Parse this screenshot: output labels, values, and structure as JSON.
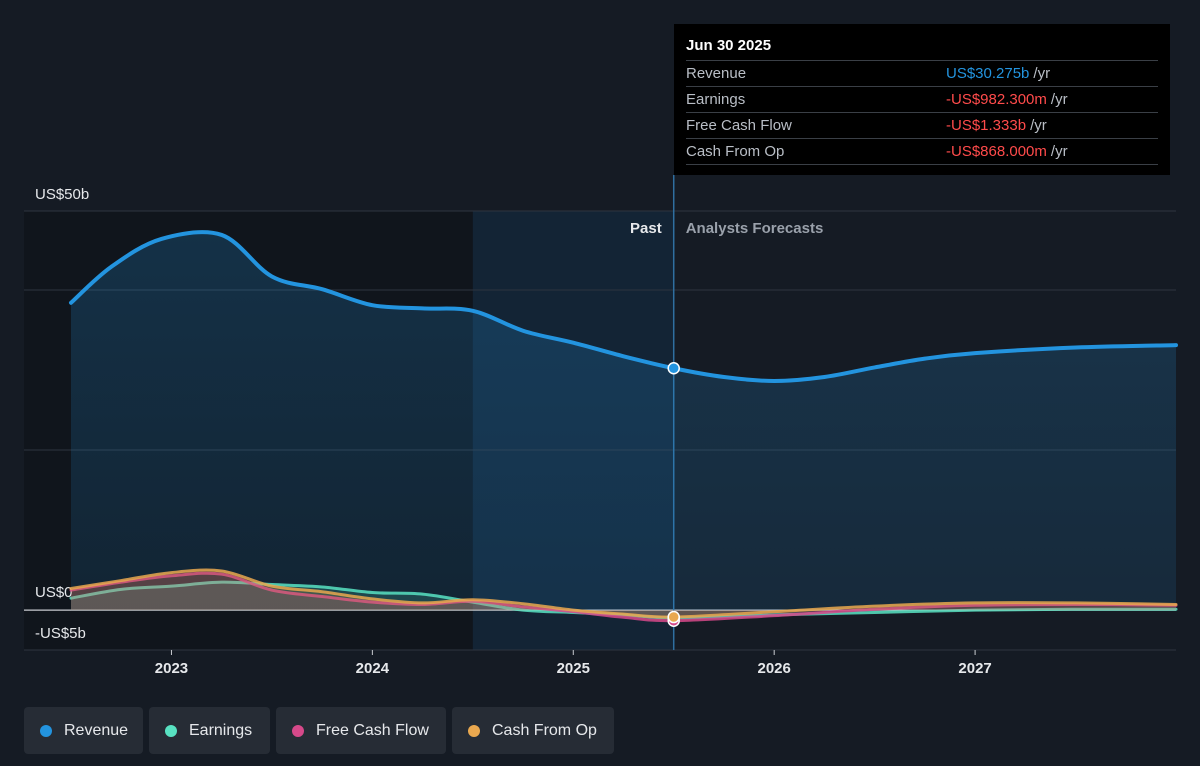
{
  "chart_data": {
    "type": "area",
    "ylim": [
      -5,
      50
    ],
    "y_ticks": [
      {
        "value": 50,
        "label": "US$50b"
      },
      {
        "value": 0,
        "label": "US$0"
      },
      {
        "value": -5,
        "label": "-US$5b"
      }
    ],
    "x_ticks": [
      "2023",
      "2024",
      "2025",
      "2026",
      "2027"
    ],
    "x_range": [
      2022.5,
      2028.0
    ],
    "past_label": "Past",
    "forecast_label": "Analysts Forecasts",
    "divider_x": 2025.5,
    "highlight_start_x": 2024.5,
    "series": [
      {
        "name": "Revenue",
        "color": "#2394df",
        "x": [
          2022.5,
          2022.7,
          2022.95,
          2023.25,
          2023.5,
          2023.75,
          2024.0,
          2024.25,
          2024.5,
          2024.75,
          2025.0,
          2025.25,
          2025.5,
          2025.75,
          2026.0,
          2026.25,
          2026.5,
          2026.75,
          2027.0,
          2027.5,
          2028.0
        ],
        "values": [
          38.5,
          43.0,
          46.5,
          47.0,
          41.8,
          40.2,
          38.2,
          37.8,
          37.5,
          35.0,
          33.5,
          31.8,
          30.3,
          29.2,
          28.7,
          29.2,
          30.4,
          31.5,
          32.2,
          32.9,
          33.2
        ]
      },
      {
        "name": "Earnings",
        "color": "#58e2c2",
        "x": [
          2022.5,
          2022.75,
          2023.0,
          2023.25,
          2023.5,
          2023.75,
          2024.0,
          2024.25,
          2024.5,
          2024.75,
          2025.0,
          2025.25,
          2025.5,
          2026.0,
          2026.5,
          2027.0,
          2027.5,
          2028.0
        ],
        "values": [
          1.5,
          2.6,
          3.0,
          3.5,
          3.2,
          2.9,
          2.2,
          2.0,
          1.0,
          0.0,
          -0.3,
          -0.6,
          -0.98,
          -0.6,
          -0.3,
          0.0,
          0.1,
          0.1
        ]
      },
      {
        "name": "Free Cash Flow",
        "color": "#d6498a",
        "x": [
          2022.5,
          2022.75,
          2023.0,
          2023.25,
          2023.5,
          2023.75,
          2024.0,
          2024.25,
          2024.5,
          2024.75,
          2025.0,
          2025.25,
          2025.5,
          2026.0,
          2026.5,
          2027.0,
          2027.5,
          2028.0
        ],
        "values": [
          2.5,
          3.5,
          4.3,
          4.5,
          2.5,
          1.7,
          1.0,
          0.7,
          1.1,
          0.4,
          -0.2,
          -0.9,
          -1.33,
          -0.7,
          0.1,
          0.6,
          0.7,
          0.6
        ]
      },
      {
        "name": "Cash From Op",
        "color": "#e9a84f",
        "x": [
          2022.5,
          2022.75,
          2023.0,
          2023.25,
          2023.5,
          2023.75,
          2024.0,
          2024.25,
          2024.5,
          2024.75,
          2025.0,
          2025.25,
          2025.5,
          2026.0,
          2026.5,
          2027.0,
          2027.5,
          2028.0
        ],
        "values": [
          2.7,
          3.7,
          4.7,
          4.9,
          3.0,
          2.3,
          1.4,
          0.9,
          1.3,
          0.8,
          0.0,
          -0.5,
          -0.87,
          -0.2,
          0.5,
          0.9,
          0.9,
          0.7
        ]
      }
    ]
  },
  "tooltip": {
    "date": "Jun 30 2025",
    "unit": "/yr",
    "rows": [
      {
        "label": "Revenue",
        "value": "US$30.275b",
        "color": "#2394df"
      },
      {
        "label": "Earnings",
        "value": "-US$982.300m",
        "color": "#ff4b4b"
      },
      {
        "label": "Free Cash Flow",
        "value": "-US$1.333b",
        "color": "#ff4b4b"
      },
      {
        "label": "Cash From Op",
        "value": "-US$868.000m",
        "color": "#ff4b4b"
      }
    ]
  },
  "legend": [
    {
      "label": "Revenue",
      "color": "#2394df"
    },
    {
      "label": "Earnings",
      "color": "#58e2c2"
    },
    {
      "label": "Free Cash Flow",
      "color": "#d6498a"
    },
    {
      "label": "Cash From Op",
      "color": "#e9a84f"
    }
  ]
}
